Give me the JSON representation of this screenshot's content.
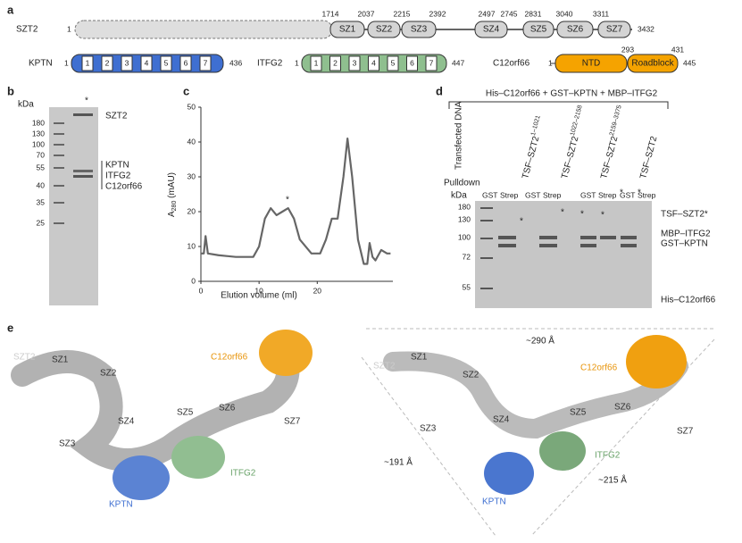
{
  "panels": {
    "a": "a",
    "b": "b",
    "c": "c",
    "d": "d",
    "e": "e"
  },
  "panel_a": {
    "szt2": {
      "name": "SZT2",
      "start": 1,
      "end": 3432,
      "boundaries": [
        1714,
        2037,
        2215,
        2392,
        2497,
        2745,
        2831,
        3040,
        3311
      ],
      "domains": [
        "SZ1",
        "SZ2",
        "SZ3",
        "SZ4",
        "SZ5",
        "SZ6",
        "SZ7"
      ]
    },
    "kptn": {
      "name": "KPTN",
      "start": 1,
      "end": 436,
      "blades": [
        1,
        2,
        3,
        4,
        5,
        6,
        7
      ]
    },
    "itfg2": {
      "name": "ITFG2",
      "start": 1,
      "end": 447,
      "blades": [
        1,
        2,
        3,
        4,
        5,
        6,
        7
      ]
    },
    "c12orf66": {
      "name": "C12orf66",
      "start": 1,
      "end": 445,
      "boundaries": [
        293,
        431
      ],
      "domains": [
        "NTD",
        "Roadblock"
      ]
    }
  },
  "panel_b": {
    "unit": "kDa",
    "marker": "*",
    "ladder": [
      180,
      130,
      100,
      70,
      55,
      40,
      35,
      25
    ],
    "labels": [
      "SZT2",
      "KPTN",
      "ITFG2",
      "C12orf66"
    ]
  },
  "chart_data": {
    "type": "line",
    "y_label": {
      "main": "A",
      "sub": "280",
      "unit": " (mAU)"
    },
    "x_label": "Elution volume (ml)",
    "annotation": "*",
    "xlim": [
      0,
      33
    ],
    "ylim": [
      0,
      50
    ],
    "xticks": [
      0,
      10,
      20
    ],
    "yticks": [
      0,
      10,
      20,
      30,
      40,
      50
    ],
    "color": "#666666",
    "x": [
      0,
      0.5,
      0.8,
      1.2,
      3,
      6,
      9,
      10,
      11,
      12,
      13,
      14,
      15,
      16,
      17,
      19,
      20.5,
      21.5,
      22.5,
      23.5,
      24.5,
      25.2,
      26,
      27,
      28,
      28.6,
      29,
      29.5,
      30,
      31,
      32,
      32.6
    ],
    "y": [
      8,
      8,
      13,
      8,
      7.5,
      7,
      7,
      10,
      18,
      21,
      19,
      20,
      21,
      18,
      12,
      8,
      8,
      12,
      18,
      18,
      30,
      41,
      30,
      12,
      5,
      5,
      11,
      7,
      6,
      9,
      8,
      8
    ]
  },
  "panel_d": {
    "title": "His–C12orf66 + GST–KPTN + MBP–ITFG2",
    "transfected": "Transfected DNA",
    "lanes": [
      {
        "name": "TSF–SZT2",
        "sup": "1–1021"
      },
      {
        "name": "TSF–SZT2",
        "sup": "1022–2158"
      },
      {
        "name": "TSF–SZT2",
        "sup": "2159–3375"
      },
      {
        "name": "TSF–SZT2"
      }
    ],
    "pulldown": "Pulldown",
    "pulldown_types": [
      "GST",
      "Strep"
    ],
    "unit": "kDa",
    "ladder": [
      180,
      130,
      100,
      72,
      55
    ],
    "marker": "*",
    "labels": [
      "TSF–SZT2*",
      "MBP–ITFG2",
      "GST–KPTN",
      "His–C12orf66"
    ]
  },
  "panel_e": {
    "left": [
      "SZT2",
      "SZ1",
      "SZ2",
      "SZ3",
      "SZ4",
      "SZ5",
      "SZ6",
      "SZ7",
      "C12orf66",
      "ITFG2",
      "KPTN"
    ],
    "right": [
      "SZT2",
      "SZ1",
      "SZ2",
      "SZ3",
      "SZ4",
      "SZ5",
      "SZ6",
      "SZ7",
      "C12orf66",
      "ITFG2",
      "KPTN"
    ],
    "dimensions": [
      "~290 Å",
      "~191 Å",
      "~215 Å"
    ]
  }
}
